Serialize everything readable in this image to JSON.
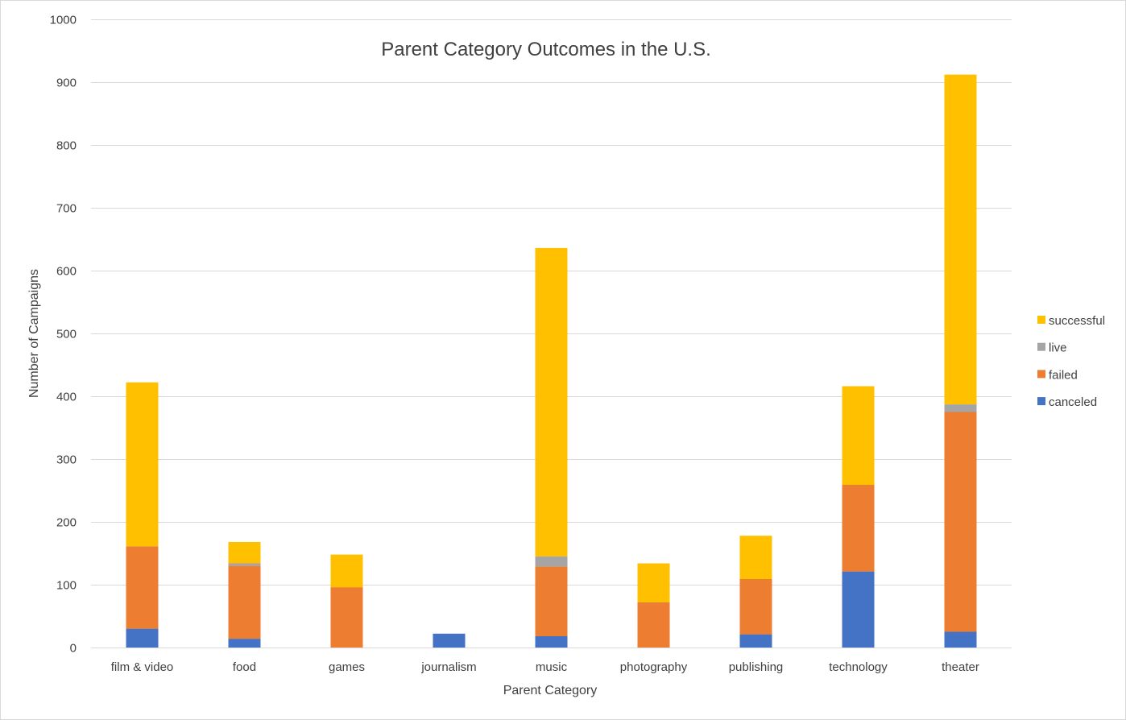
{
  "chart_data": {
    "type": "bar",
    "stacked": true,
    "title": "Parent Category Outcomes in the U.S.",
    "xlabel": "Parent Category",
    "ylabel": "Number of Campaigns",
    "ylim": [
      0,
      1000
    ],
    "yticks": [
      0,
      100,
      200,
      300,
      400,
      500,
      600,
      700,
      800,
      900,
      1000
    ],
    "grid": true,
    "legend_position": "right",
    "categories": [
      "film & video",
      "food",
      "games",
      "journalism",
      "music",
      "photography",
      "publishing",
      "technology",
      "theater"
    ],
    "series": [
      {
        "name": "canceled",
        "color": "#4472C4",
        "values": [
          30,
          14,
          0,
          22,
          18,
          0,
          21,
          121,
          25
        ]
      },
      {
        "name": "failed",
        "color": "#ED7D31",
        "values": [
          131,
          116,
          96,
          0,
          111,
          72,
          88,
          138,
          350
        ]
      },
      {
        "name": "live",
        "color": "#A5A5A5",
        "values": [
          0,
          4,
          0,
          0,
          16,
          0,
          0,
          0,
          12
        ]
      },
      {
        "name": "successful",
        "color": "#FFC000",
        "values": [
          261,
          34,
          52,
          0,
          491,
          62,
          69,
          157,
          525
        ]
      }
    ]
  }
}
